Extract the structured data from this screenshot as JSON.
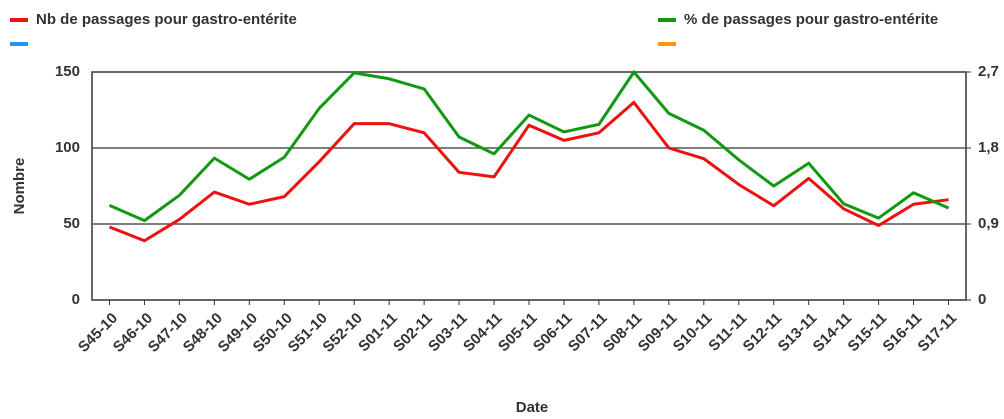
{
  "chart_data": {
    "type": "line",
    "x_label": "Date",
    "y_label": "Nombre",
    "categories": [
      "S45-10",
      "S46-10",
      "S47-10",
      "S48-10",
      "S49-10",
      "S50-10",
      "S51-10",
      "S52-10",
      "S01-11",
      "S02-11",
      "S03-11",
      "S04-11",
      "S05-11",
      "S06-11",
      "S07-11",
      "S08-11",
      "S09-11",
      "S10-11",
      "S11-11",
      "S12-11",
      "S13-11",
      "S14-11",
      "S15-11",
      "S16-11",
      "S17-11"
    ],
    "series": [
      {
        "name": "Nb de passages pour gastro-entérite",
        "color": "#ee1111",
        "values": [
          48,
          39,
          53,
          71,
          63,
          68,
          91,
          116,
          116,
          110,
          84,
          81,
          115,
          105,
          110,
          130,
          100,
          93,
          76,
          62,
          80,
          60,
          49,
          63,
          66
        ]
      },
      {
        "name": "% de passages pour gastro-entérite",
        "color": "#119911",
        "axis": "y2",
        "values": [
          1.12,
          0.94,
          1.24,
          1.68,
          1.43,
          1.69,
          2.27,
          2.69,
          2.62,
          2.5,
          1.93,
          1.73,
          2.19,
          1.99,
          2.08,
          2.7,
          2.21,
          2.01,
          1.66,
          1.35,
          1.62,
          1.14,
          0.97,
          1.27,
          1.09
        ]
      }
    ],
    "extra_legend_colors": [
      "#2196f3",
      "#ff9800"
    ],
    "ylim": [
      0,
      150
    ],
    "yticks": [
      0,
      50,
      100,
      150
    ],
    "y2lim": [
      0,
      2.7
    ],
    "y2ticks": [
      0,
      {
        "value": 0.9,
        "label": "0,9"
      },
      {
        "value": 1.8,
        "label": "1,8"
      },
      {
        "value": 2.7,
        "label": "2,7"
      }
    ],
    "grid": true
  }
}
